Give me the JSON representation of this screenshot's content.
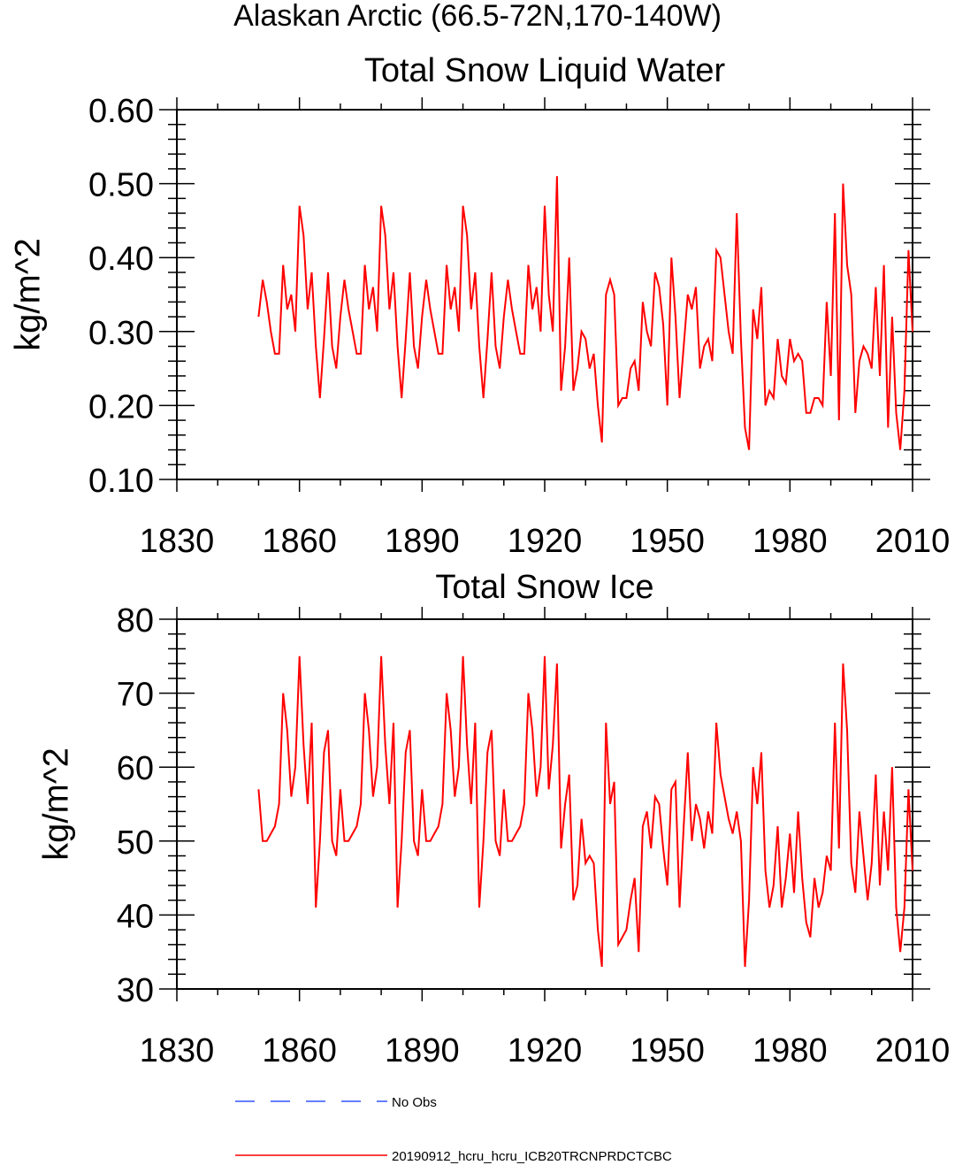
{
  "page_title": "Alaskan Arctic (66.5-72N,170-140W)",
  "colors": {
    "series": "#ff0000",
    "no_obs": "#3355ff",
    "axis": "#000000"
  },
  "legend": {
    "no_obs_label": "No Obs",
    "model_label": "20190912_hcru_hcru_ICB20TRCNPRDCTCBC"
  },
  "chart_data": [
    {
      "type": "line",
      "title": "Total Snow Liquid Water",
      "xlabel": "",
      "ylabel": "kg/m^2",
      "xlim": [
        1830,
        2010
      ],
      "ylim": [
        0.1,
        0.6
      ],
      "xticks": [
        "1830",
        "1860",
        "1890",
        "1920",
        "1950",
        "1980",
        "2010"
      ],
      "yticks": [
        "0.10",
        "0.20",
        "0.30",
        "0.40",
        "0.50",
        "0.60"
      ],
      "grid": false,
      "series": [
        {
          "name": "20190912_hcru_hcru_ICB20TRCNPRDCTCBC",
          "x_start": 1850,
          "values": [
            0.32,
            0.37,
            0.34,
            0.3,
            0.27,
            0.27,
            0.39,
            0.33,
            0.35,
            0.3,
            0.47,
            0.43,
            0.33,
            0.38,
            0.28,
            0.21,
            0.29,
            0.38,
            0.28,
            0.25,
            0.32,
            0.37,
            0.33,
            0.3,
            0.27,
            0.27,
            0.39,
            0.33,
            0.36,
            0.3,
            0.47,
            0.43,
            0.33,
            0.38,
            0.28,
            0.21,
            0.29,
            0.38,
            0.28,
            0.25,
            0.32,
            0.37,
            0.33,
            0.3,
            0.27,
            0.27,
            0.39,
            0.33,
            0.36,
            0.3,
            0.47,
            0.43,
            0.33,
            0.38,
            0.28,
            0.21,
            0.29,
            0.38,
            0.28,
            0.25,
            0.32,
            0.37,
            0.33,
            0.3,
            0.27,
            0.27,
            0.39,
            0.33,
            0.36,
            0.3,
            0.47,
            0.35,
            0.3,
            0.51,
            0.22,
            0.28,
            0.4,
            0.22,
            0.25,
            0.3,
            0.29,
            0.25,
            0.27,
            0.2,
            0.15,
            0.35,
            0.37,
            0.35,
            0.2,
            0.21,
            0.21,
            0.25,
            0.26,
            0.22,
            0.34,
            0.3,
            0.28,
            0.38,
            0.36,
            0.31,
            0.2,
            0.4,
            0.32,
            0.21,
            0.28,
            0.35,
            0.33,
            0.36,
            0.25,
            0.28,
            0.29,
            0.26,
            0.41,
            0.4,
            0.35,
            0.3,
            0.27,
            0.46,
            0.29,
            0.17,
            0.14,
            0.33,
            0.29,
            0.36,
            0.2,
            0.22,
            0.21,
            0.29,
            0.24,
            0.23,
            0.29,
            0.26,
            0.27,
            0.26,
            0.19,
            0.19,
            0.21,
            0.21,
            0.2,
            0.34,
            0.24,
            0.46,
            0.18,
            0.5,
            0.39,
            0.35,
            0.19,
            0.26,
            0.28,
            0.27,
            0.25,
            0.36,
            0.24,
            0.39,
            0.17,
            0.32,
            0.19,
            0.14,
            0.22,
            0.41,
            0.3
          ]
        }
      ]
    },
    {
      "type": "line",
      "title": "Total Snow Ice",
      "xlabel": "",
      "ylabel": "kg/m^2",
      "xlim": [
        1830,
        2010
      ],
      "ylim": [
        30,
        80
      ],
      "xticks": [
        "1830",
        "1860",
        "1890",
        "1920",
        "1950",
        "1980",
        "2010"
      ],
      "yticks": [
        "30",
        "40",
        "50",
        "60",
        "70",
        "80"
      ],
      "grid": false,
      "series": [
        {
          "name": "20190912_hcru_hcru_ICB20TRCNPRDCTCBC",
          "x_start": 1850,
          "values": [
            57,
            50,
            50,
            51,
            52,
            55,
            70,
            65,
            56,
            60,
            75,
            63,
            55,
            66,
            41,
            50,
            62,
            65,
            50,
            48,
            57,
            50,
            50,
            51,
            52,
            55,
            70,
            65,
            56,
            60,
            75,
            63,
            55,
            66,
            41,
            50,
            62,
            65,
            50,
            48,
            57,
            50,
            50,
            51,
            52,
            55,
            70,
            65,
            56,
            60,
            75,
            63,
            55,
            66,
            41,
            50,
            62,
            65,
            50,
            48,
            57,
            50,
            50,
            51,
            52,
            55,
            70,
            65,
            56,
            60,
            75,
            57,
            63,
            74,
            49,
            55,
            59,
            42,
            44,
            53,
            47,
            48,
            47,
            38,
            33,
            66,
            55,
            58,
            36,
            37,
            38,
            42,
            45,
            35,
            52,
            54,
            49,
            56,
            55,
            49,
            44,
            57,
            58,
            41,
            52,
            62,
            50,
            55,
            53,
            49,
            54,
            51,
            66,
            59,
            56,
            53,
            51,
            54,
            50,
            33,
            42,
            60,
            55,
            62,
            46,
            41,
            44,
            52,
            41,
            45,
            51,
            43,
            54,
            45,
            39,
            37,
            45,
            41,
            43,
            48,
            46,
            66,
            49,
            74,
            65,
            47,
            43,
            54,
            48,
            42,
            47,
            59,
            44,
            54,
            46,
            60,
            41,
            35,
            41,
            57,
            46
          ]
        }
      ]
    }
  ]
}
